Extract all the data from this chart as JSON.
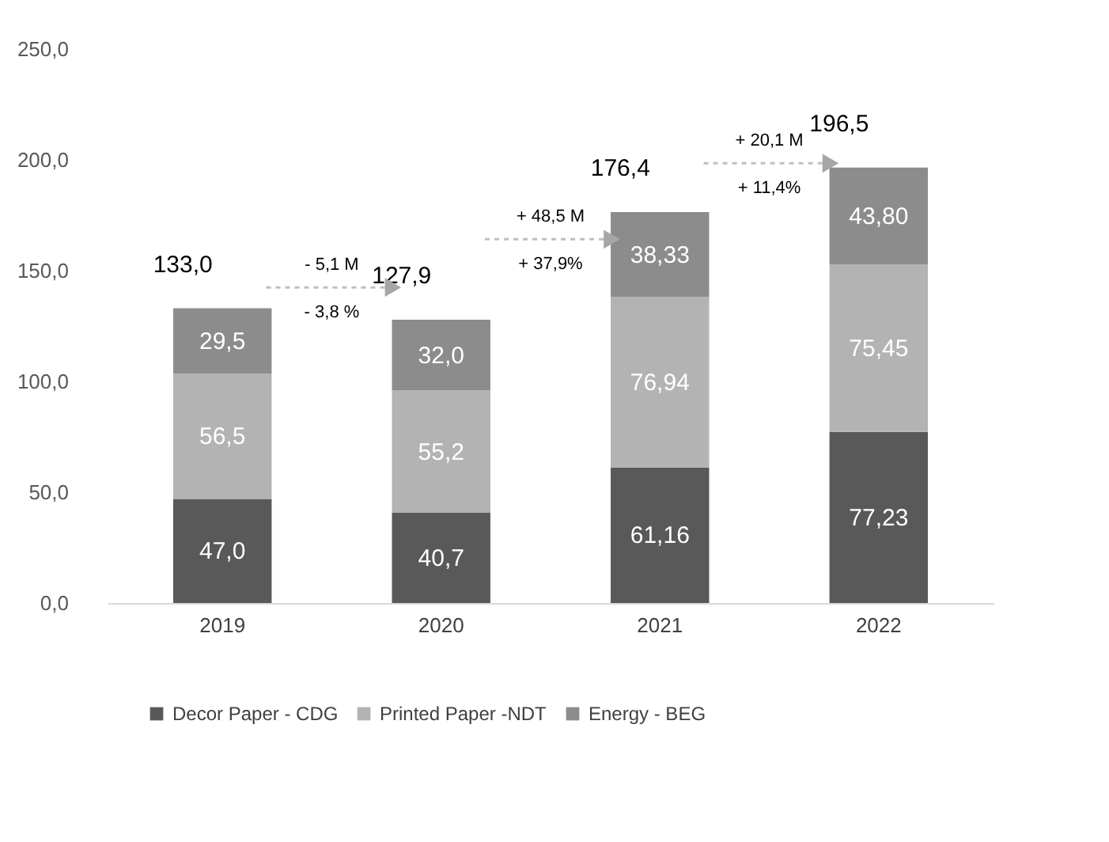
{
  "chart_data": {
    "type": "bar",
    "stacked": true,
    "categories": [
      "2019",
      "2020",
      "2021",
      "2022"
    ],
    "series": [
      {
        "name": "Decor Paper - CDG",
        "color": "#595959",
        "values": [
          47.0,
          40.7,
          61.16,
          77.23
        ],
        "value_labels": [
          "47,0",
          "40,7",
          "61,16",
          "77,23"
        ]
      },
      {
        "name": "Printed Paper -NDT",
        "color": "#b3b3b3",
        "values": [
          56.5,
          55.2,
          76.94,
          75.45
        ],
        "value_labels": [
          "56,5",
          "55,2",
          "76,94",
          "75,45"
        ]
      },
      {
        "name": "Energy - BEG",
        "color": "#8c8c8c",
        "values": [
          29.5,
          32.0,
          38.33,
          43.8
        ],
        "value_labels": [
          "29,5",
          "32,0",
          "38,33",
          "43,80"
        ]
      }
    ],
    "totals": [
      "133,0",
      "127,9",
      "176,4",
      "196,5"
    ],
    "ylim": [
      0,
      250
    ],
    "yticks": [
      {
        "value": 0,
        "label": "0,0"
      },
      {
        "value": 50,
        "label": "50,0"
      },
      {
        "value": 100,
        "label": "100,0"
      },
      {
        "value": 150,
        "label": "150,0"
      },
      {
        "value": 200,
        "label": "200,0"
      },
      {
        "value": 250,
        "label": "250,0"
      }
    ],
    "annotations": [
      "- 5,1 M",
      "- 3,8 %",
      "+ 48,5 M",
      "+ 37,9%",
      "+ 20,1 M",
      "+ 11,4%"
    ],
    "grid": false,
    "legend": "bottom"
  }
}
